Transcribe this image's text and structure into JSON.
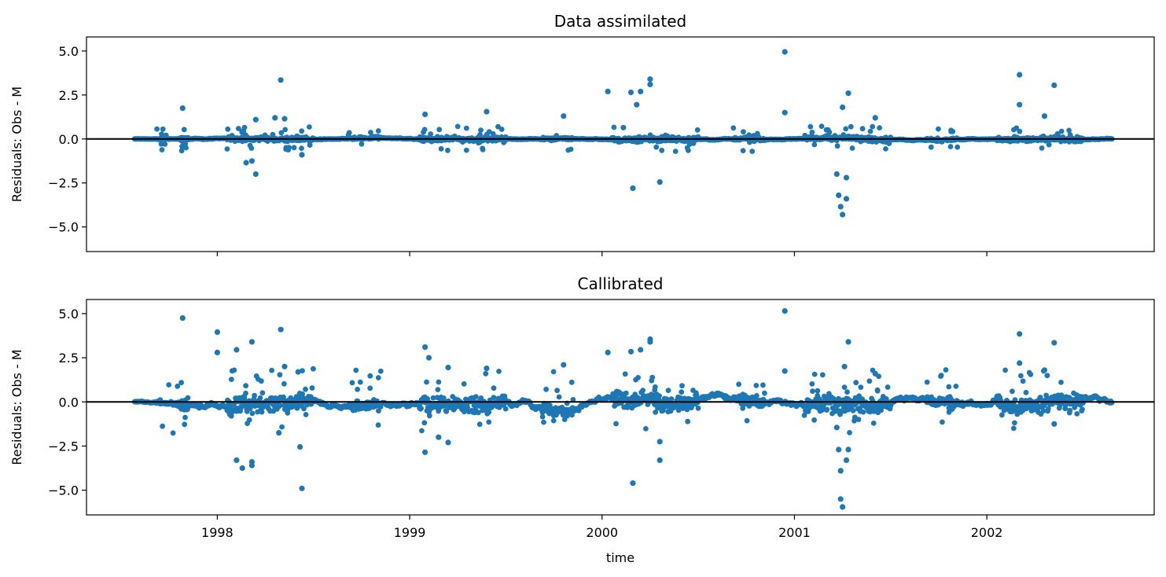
{
  "chart_data": [
    {
      "type": "scatter",
      "title": "Data assimilated",
      "xlabel": "",
      "ylabel": "Residuals: Obs - M",
      "xlim": [
        1997.32,
        2002.87
      ],
      "ylim": [
        -6.4,
        5.8
      ],
      "yticks": [
        5.0,
        2.5,
        0.0,
        -2.5,
        -5.0
      ],
      "ytick_labels": [
        "5.0",
        "2.5",
        "0.0",
        "−2.5",
        "−5.0"
      ],
      "xticks": [
        1998,
        1999,
        2000,
        2001,
        2002
      ],
      "xtick_labels": [],
      "hline": 0,
      "color": "#1f77b4",
      "base_amplitude": 0.35,
      "outliers": [
        [
          1997.82,
          1.75
        ],
        [
          1998.15,
          -1.35
        ],
        [
          1998.18,
          -1.25
        ],
        [
          1998.2,
          -2.0
        ],
        [
          1998.2,
          1.1
        ],
        [
          1998.33,
          3.35
        ],
        [
          1998.3,
          1.2
        ],
        [
          1998.35,
          1.15
        ],
        [
          1998.44,
          -0.9
        ],
        [
          1999.08,
          1.4
        ],
        [
          1999.4,
          1.55
        ],
        [
          1999.8,
          1.3
        ],
        [
          2000.03,
          2.7
        ],
        [
          2000.15,
          2.65
        ],
        [
          2000.16,
          -2.8
        ],
        [
          2000.2,
          2.7
        ],
        [
          2000.25,
          3.4
        ],
        [
          2000.25,
          3.1
        ],
        [
          2000.3,
          -2.45
        ],
        [
          2000.18,
          1.95
        ],
        [
          2000.95,
          4.95
        ],
        [
          2000.95,
          1.5
        ],
        [
          2001.22,
          -2.0
        ],
        [
          2001.23,
          -3.2
        ],
        [
          2001.24,
          -3.85
        ],
        [
          2001.25,
          -4.3
        ],
        [
          2001.27,
          -3.4
        ],
        [
          2001.27,
          -2.2
        ],
        [
          2001.28,
          2.6
        ],
        [
          2001.25,
          1.8
        ],
        [
          2001.42,
          1.2
        ],
        [
          2002.17,
          3.65
        ],
        [
          2002.17,
          1.95
        ],
        [
          2002.35,
          3.05
        ],
        [
          2002.3,
          1.3
        ]
      ]
    },
    {
      "type": "scatter",
      "title": "Callibrated",
      "xlabel": "time",
      "ylabel": "Residuals: Obs - M",
      "xlim": [
        1997.32,
        2002.87
      ],
      "ylim": [
        -6.4,
        5.8
      ],
      "yticks": [
        5.0,
        2.5,
        0.0,
        -2.5,
        -5.0
      ],
      "ytick_labels": [
        "5.0",
        "2.5",
        "0.0",
        "−2.5",
        "−5.0"
      ],
      "xticks": [
        1998,
        1999,
        2000,
        2001,
        2002
      ],
      "xtick_labels": [
        "1998",
        "1999",
        "2000",
        "2001",
        "2002"
      ],
      "hline": 0,
      "color": "#1f77b4",
      "base_amplitude": 0.9,
      "outliers": [
        [
          1997.82,
          4.75
        ],
        [
          1998.0,
          3.95
        ],
        [
          1998.0,
          2.8
        ],
        [
          1998.1,
          2.95
        ],
        [
          1998.18,
          3.4
        ],
        [
          1998.1,
          -3.3
        ],
        [
          1998.13,
          -3.75
        ],
        [
          1998.18,
          -3.4
        ],
        [
          1998.18,
          -3.6
        ],
        [
          1998.33,
          4.1
        ],
        [
          1998.32,
          -1.75
        ],
        [
          1998.43,
          -2.55
        ],
        [
          1998.44,
          -4.9
        ],
        [
          1998.35,
          2.0
        ],
        [
          1998.42,
          1.7
        ],
        [
          1999.08,
          3.1
        ],
        [
          1999.08,
          -2.85
        ],
        [
          1999.1,
          2.5
        ],
        [
          1999.2,
          1.95
        ],
        [
          1999.4,
          1.9
        ],
        [
          1999.15,
          -2.0
        ],
        [
          1999.2,
          -2.3
        ],
        [
          1999.8,
          2.1
        ],
        [
          2000.03,
          2.8
        ],
        [
          2000.15,
          2.85
        ],
        [
          2000.16,
          -4.6
        ],
        [
          2000.2,
          2.95
        ],
        [
          2000.25,
          3.55
        ],
        [
          2000.25,
          3.4
        ],
        [
          2000.3,
          -2.25
        ],
        [
          2000.3,
          -3.3
        ],
        [
          2000.95,
          5.15
        ],
        [
          2000.95,
          1.75
        ],
        [
          2001.22,
          -1.45
        ],
        [
          2001.23,
          -2.7
        ],
        [
          2001.24,
          -3.9
        ],
        [
          2001.24,
          -5.5
        ],
        [
          2001.25,
          -5.95
        ],
        [
          2001.27,
          -3.3
        ],
        [
          2001.28,
          -2.7
        ],
        [
          2001.28,
          3.4
        ],
        [
          2001.26,
          2.0
        ],
        [
          2001.42,
          1.6
        ],
        [
          2002.17,
          3.85
        ],
        [
          2002.17,
          2.2
        ],
        [
          2002.35,
          3.35
        ],
        [
          2002.35,
          -1.25
        ],
        [
          2002.3,
          1.8
        ]
      ]
    }
  ]
}
